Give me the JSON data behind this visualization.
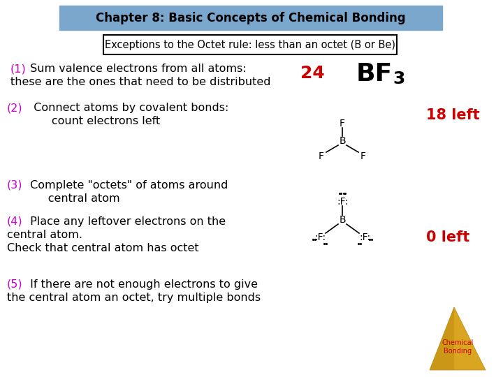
{
  "bg_color": "#ffffff",
  "title_box_color": "#7ba7cc",
  "title_text": "Chapter 8: Basic Concepts of Chemical Bonding",
  "title_color": "#000000",
  "subtitle_text": "Exceptions to the Octet rule: less than an octet (B or Be)",
  "subtitle_color": "#000000",
  "magenta": "#cc00cc",
  "red": "#cc0000",
  "black": "#000000",
  "step1_num": "(1)",
  "step1_line1": " Sum valence electrons from all atoms:",
  "step1_line2": "these are the ones that need to be distributed",
  "step1_num24": "24",
  "step2_num": "(2)",
  "step2_line1": "  Connect atoms by covalent bonds:",
  "step2_line2": "       count electrons left",
  "step2_right": "18 left",
  "step3_num": "(3)",
  "step3_line1": " Complete \"octets\" of atoms around",
  "step3_line2": "      central atom",
  "step4_num": "(4)",
  "step4_line1": " Place any leftover electrons on the",
  "step4_line2": "central atom.",
  "step4_line3": "Check that central atom has octet",
  "step4_right": "0 left",
  "step5_num": "(5)",
  "step5_line1": " If there are not enough electrons to give",
  "step5_line2": "the central atom an octet, try multiple bonds",
  "triangle_color": "#DAA520",
  "triangle_dark": "#B8860B",
  "chem_bond_text": "Chemical\nBonding"
}
